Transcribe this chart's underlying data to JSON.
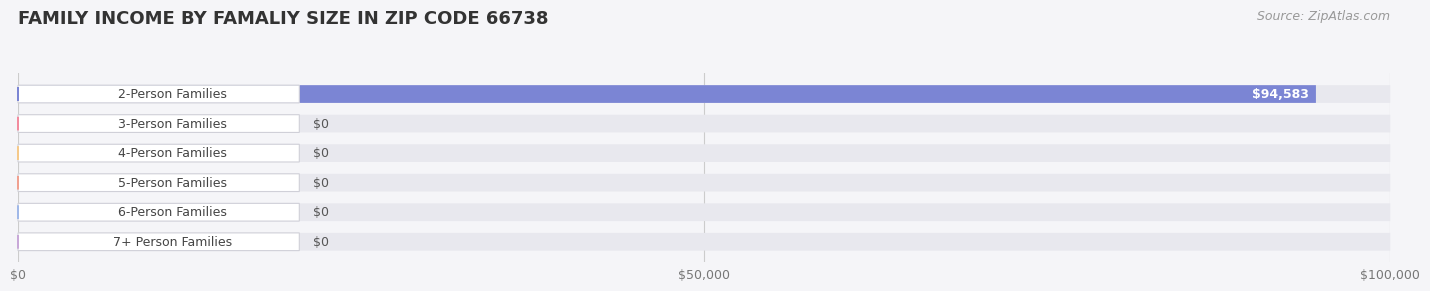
{
  "title": "FAMILY INCOME BY FAMALIY SIZE IN ZIP CODE 66738",
  "source": "Source: ZipAtlas.com",
  "categories": [
    "2-Person Families",
    "3-Person Families",
    "4-Person Families",
    "5-Person Families",
    "6-Person Families",
    "7+ Person Families"
  ],
  "values": [
    94583,
    0,
    0,
    0,
    0,
    0
  ],
  "bar_colors": [
    "#7b85d4",
    "#f28b9e",
    "#f5c98a",
    "#f0a090",
    "#a0b8e8",
    "#c8a8d8"
  ],
  "xlim": [
    0,
    100000
  ],
  "xticks": [
    0,
    50000,
    100000
  ],
  "xtick_labels": [
    "$0",
    "$50,000",
    "$100,000"
  ],
  "value_labels": [
    "$94,583",
    "$0",
    "$0",
    "$0",
    "$0",
    "$0"
  ],
  "bg_color": "#f5f5f8",
  "bar_bg_color": "#e8e8ee",
  "title_fontsize": 13,
  "label_fontsize": 9,
  "value_fontsize": 9,
  "source_fontsize": 9
}
